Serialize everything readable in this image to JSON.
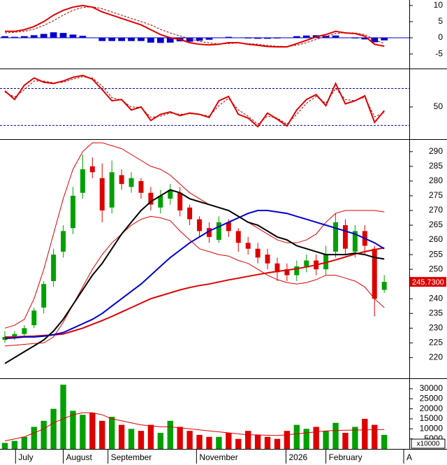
{
  "chart_data": [
    {
      "type": "line",
      "ylim": [
        -9.3,
        11.7
      ],
      "yticks": [
        10,
        5,
        0,
        -5
      ],
      "ref_lines": [
        0
      ],
      "ref_style": "solid",
      "ref_color": "#0000cc",
      "series": [
        {
          "style": "bar",
          "color": "#0000cc",
          "values": [
            0.5,
            0.3,
            0.5,
            0.8,
            1.2,
            1.7,
            1.5,
            1,
            0.6,
            -0.1,
            -1,
            -1,
            -1,
            -1,
            -1,
            -1.5,
            -1.6,
            -1.5,
            -1.1,
            -1.2,
            -0.9,
            -0.6,
            -0.1,
            0.3,
            0.1,
            -0.2,
            -0.3,
            -0.3,
            -0.2,
            -0.1,
            0.5,
            0.7,
            0.8,
            0.6,
            0.7,
            -0.1,
            -0.2,
            -0.5,
            -1.4,
            -0.8
          ]
        },
        {
          "style": "dashed",
          "color": "#a00000",
          "values": [
            1.5,
            1.7,
            2,
            2.7,
            3.8,
            5.3,
            7,
            8.5,
            9.4,
            9.6,
            9,
            8,
            7,
            6,
            5,
            4,
            2.6,
            1.5,
            0.6,
            -0.3,
            -1.1,
            -1.6,
            -1.9,
            -1.8,
            -1.6,
            -1.8,
            -2,
            -2.4,
            -2.6,
            -2.7,
            -2.3,
            -1.5,
            -0.5,
            0.4,
            1.3,
            1.6,
            1.5,
            1,
            -0.6,
            -1.8
          ]
        },
        {
          "style": "solid",
          "color": "#dd0000",
          "values": [
            2,
            2,
            2.5,
            3.5,
            5,
            7,
            8.5,
            9.5,
            10,
            9.5,
            8,
            7,
            6,
            5,
            4,
            2.5,
            1,
            0,
            -0.5,
            -1.5,
            -2,
            -2.2,
            -2,
            -1.5,
            -1.5,
            -2,
            -2.3,
            -2.7,
            -2.8,
            -2.8,
            -1.8,
            -0.8,
            0.3,
            1,
            2,
            1.5,
            1.3,
            0.5,
            -2,
            -2.6
          ]
        }
      ]
    },
    {
      "type": "line",
      "ylim": [
        0,
        110
      ],
      "yticks": [
        50
      ],
      "ref_lines": [
        80,
        20
      ],
      "ref_style": "dashed",
      "ref_color": "#0000cc",
      "series": [
        {
          "style": "dashed",
          "color": "#a00000",
          "values": [
            74,
            66,
            78,
            92,
            92,
            89,
            90,
            95,
            99,
            97,
            84,
            65,
            61,
            50,
            49,
            33,
            35,
            40,
            38,
            39,
            38,
            35,
            52,
            64,
            45,
            35,
            22,
            35,
            32,
            22,
            38,
            56,
            67,
            56,
            80,
            62,
            60,
            66,
            34,
            40
          ]
        },
        {
          "style": "solid",
          "color": "#dd0000",
          "values": [
            76,
            62,
            85,
            97,
            90,
            88,
            92,
            98,
            101,
            95,
            78,
            60,
            62,
            45,
            50,
            28,
            38,
            42,
            36,
            40,
            38,
            33,
            60,
            67,
            38,
            32,
            18,
            40,
            30,
            19,
            45,
            62,
            70,
            52,
            88,
            55,
            60,
            68,
            25,
            44
          ]
        }
      ]
    },
    {
      "type": "candlestick",
      "ylim": [
        213.2,
        294
      ],
      "yticks": [
        220,
        225,
        230,
        235,
        240,
        245,
        250,
        255,
        260,
        265,
        270,
        275,
        280,
        285,
        290
      ],
      "up_color": "#00a000",
      "down_color": "#dd0000",
      "open": [
        226,
        227,
        228,
        231,
        237,
        246,
        256,
        264,
        276,
        285,
        281,
        271,
        282,
        278,
        280,
        276,
        271,
        274,
        276,
        271,
        267,
        264,
        260,
        266,
        263,
        259,
        257,
        255,
        252,
        250,
        248,
        251,
        253,
        250,
        256,
        265,
        256,
        263,
        257,
        243
      ],
      "high": [
        229,
        229,
        231,
        237,
        246,
        257,
        265,
        278,
        289,
        288,
        286,
        287,
        284,
        283,
        281,
        278,
        277,
        279,
        278,
        272,
        268,
        266,
        268,
        267,
        264,
        261,
        259,
        257,
        254,
        252,
        253,
        255,
        255,
        258,
        269,
        267,
        265,
        265,
        258,
        248
      ],
      "low": [
        225,
        226,
        227,
        230,
        235,
        244,
        254,
        262,
        274,
        281,
        266,
        269,
        277,
        276,
        274,
        270,
        269,
        272,
        268,
        265,
        261,
        259,
        259,
        261,
        256,
        255,
        252,
        250,
        246,
        246,
        246,
        249,
        248,
        248,
        254,
        255,
        254,
        255,
        234,
        242
      ],
      "close": [
        227,
        228,
        230,
        236,
        245,
        255,
        263,
        275,
        284,
        283,
        270,
        283,
        279,
        281,
        276,
        272,
        275,
        277,
        270,
        267,
        263,
        261,
        266,
        263,
        259,
        257,
        254,
        252,
        249,
        248,
        251,
        253,
        250,
        255,
        266,
        257,
        263,
        258,
        240,
        245.73
      ],
      "series": [
        {
          "style": "solid",
          "width": 1,
          "color": "#dd0000",
          "values": [
            230,
            231,
            233,
            240,
            250,
            262,
            274,
            284,
            290,
            293,
            293,
            292,
            291,
            289,
            287,
            285,
            284,
            282,
            279,
            276,
            274,
            272,
            271,
            270,
            268,
            266,
            264,
            262,
            260,
            259,
            259,
            260,
            262,
            266,
            269,
            270,
            270,
            270,
            270,
            269.5
          ]
        },
        {
          "style": "solid",
          "width": 1,
          "color": "#dd0000",
          "values": [
            224,
            224.2,
            224.5,
            224.8,
            225,
            227,
            232,
            238,
            244,
            250,
            255,
            259,
            262,
            265,
            267,
            268,
            267.5,
            266.5,
            263,
            260,
            257,
            256,
            255,
            254.5,
            253,
            252,
            250,
            248,
            246.5,
            245.5,
            245,
            245.5,
            246.5,
            248,
            248,
            247,
            246,
            244,
            240,
            237
          ]
        },
        {
          "style": "solid",
          "width": 2,
          "color": "#dd0000",
          "values": [
            227,
            227,
            227.2,
            227.3,
            227.5,
            227.7,
            228,
            229,
            230,
            231.3,
            232.6,
            234,
            235.5,
            237,
            238.5,
            240,
            241,
            242,
            243,
            243.8,
            244.5,
            245,
            245.7,
            246.4,
            247,
            247.6,
            248.2,
            248.8,
            249.3,
            249.7,
            250.2,
            250.8,
            251.5,
            252.3,
            253.2,
            254.2,
            255.2,
            256,
            256.7,
            257.3
          ]
        },
        {
          "style": "solid",
          "width": 2,
          "color": "#0000cc",
          "values": [
            226.5,
            226.7,
            227,
            227,
            227.3,
            227.8,
            228.5,
            230,
            231.5,
            233,
            235,
            237.5,
            240,
            242.5,
            245,
            248,
            251,
            254,
            256.5,
            259,
            261,
            263,
            264.5,
            266,
            267.5,
            269,
            270,
            270,
            269.5,
            269,
            268,
            267,
            266,
            265,
            264,
            263,
            262,
            260.5,
            259,
            257
          ]
        },
        {
          "style": "solid",
          "width": 2,
          "color": "#000000",
          "values": [
            218,
            220,
            222,
            224,
            226,
            229,
            233,
            238,
            243,
            248,
            252,
            257,
            262,
            266,
            270,
            273,
            275,
            277,
            276,
            274,
            273,
            272,
            271,
            270,
            268,
            266,
            265,
            263,
            261,
            260,
            258,
            257,
            256,
            255,
            255,
            255,
            255.5,
            255,
            254,
            253.5
          ]
        }
      ],
      "last_price": {
        "value": 245.73,
        "label": "245.7300"
      }
    },
    {
      "type": "bar",
      "ylim": [
        0,
        34500
      ],
      "yticks": [
        5000,
        10000,
        15000,
        20000,
        25000,
        30000
      ],
      "unit_label": "x10000",
      "values": [
        3000,
        4000,
        6000,
        11000,
        14000,
        20000,
        32000,
        19000,
        17000,
        18000,
        14000,
        16000,
        12000,
        10000,
        9000,
        12000,
        8000,
        14000,
        11000,
        9000,
        7000,
        6000,
        6000,
        8000,
        5000,
        9000,
        7000,
        6000,
        5000,
        9000,
        12000,
        10000,
        11000,
        9000,
        13000,
        8000,
        11000,
        15000,
        12000,
        7000
      ],
      "series": [
        {
          "style": "solid",
          "width": 1,
          "color": "#dd0000",
          "values": [
            4000,
            5000,
            6000,
            8000,
            10000,
            13000,
            15000,
            17000,
            18000,
            18000,
            17000,
            15000,
            14000,
            13000,
            12000,
            11500,
            11000,
            11000,
            10500,
            10000,
            9500,
            9000,
            8500,
            8000,
            7500,
            7000,
            7000,
            6800,
            6700,
            7000,
            7500,
            8000,
            8500,
            9000,
            9200,
            9300,
            9400,
            9500,
            9600,
            9700
          ]
        }
      ],
      "xlim": [
        -0.5,
        41.5
      ],
      "xticks": [
        {
          "value": 1.1,
          "label": "July"
        },
        {
          "value": 6,
          "label": "August"
        },
        {
          "value": 10.6,
          "label": "September"
        },
        {
          "value": 19.7,
          "label": "November"
        },
        {
          "value": 28.9,
          "label": "2026"
        },
        {
          "value": 33,
          "label": "February"
        },
        {
          "value": 41,
          "label": "A"
        }
      ]
    }
  ]
}
